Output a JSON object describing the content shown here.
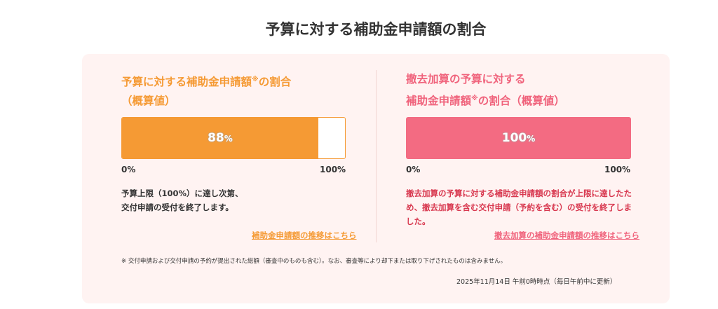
{
  "page": {
    "title": "予算に対する補助金申請額の割合"
  },
  "left": {
    "title_line1_pre": "予算に対する補助金申請額",
    "title_mark": "※",
    "title_line1_post": "の割合",
    "title_line2": "（概算値）",
    "bar_value_number": "88",
    "bar_value_unit": "%",
    "progress_percent": 88,
    "scale_min": "0%",
    "scale_max": "100%",
    "desc_line1": "予算上限（100%）に達し次第、",
    "desc_line2": "交付申請の受付を終了します。",
    "link_label": "補助金申請額の推移はこちら",
    "color": "#f59a34"
  },
  "right": {
    "title_line1": "撤去加算の予算に対する",
    "title_line2_pre": "補助金申請額",
    "title_mark": "※",
    "title_line2_post": "の割合（概算値）",
    "bar_value_number": "100",
    "bar_value_unit": "%",
    "progress_percent": 100,
    "scale_min": "0%",
    "scale_max": "100%",
    "desc_line1": "撤去加算の予算に対する補助金申請額の割合が上限に達したた",
    "desc_line2": "め、撤去加算を含む交付申請（予約を含む）の受付を終了しま",
    "desc_line3": "した。",
    "link_label": "撤去加算の補助金申請額の推移はこちら",
    "color": "#f0637c"
  },
  "footnote": "※ 交付申請および交付申請の予約が提出された総額（審査中のものも含む）。なお、審査等により却下または取り下げされたものは含みません。",
  "timestamp": "2025年11月14日 午前0時時点（毎日午前中に更新）"
}
